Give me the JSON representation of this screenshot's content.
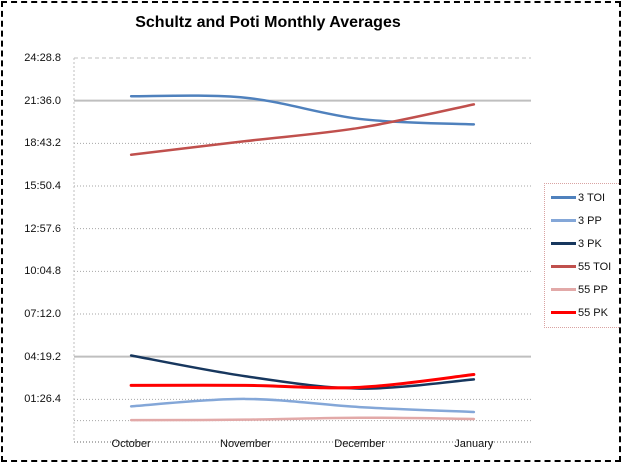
{
  "title": "Schultz and Poti Monthly Averages",
  "chart_data": {
    "type": "line",
    "title": "Schultz and Poti Monthly Averages",
    "categories": [
      "October",
      "November",
      "December",
      "January"
    ],
    "y_axis": {
      "tick_labels": [
        "24:28.8",
        "21:36.0",
        "18:43.2",
        "15:50.4",
        "12:57.6",
        "10:04.8",
        "07:12.0",
        "04:19.2",
        "01:26.4"
      ],
      "tick_seconds": [
        1468.8,
        1296.0,
        1123.2,
        950.4,
        777.6,
        604.8,
        432.0,
        259.2,
        86.4
      ],
      "min_seconds": -86.4,
      "max_seconds": 1468.8,
      "major_unit_seconds": 172.8,
      "extra_gridline_seconds": 0,
      "format": "mm:ss.t"
    },
    "series": [
      {
        "name": "3 TOI",
        "color": "#4F81BD",
        "stroke_width": 2.5,
        "values": [
          "21:54",
          "21:48",
          "20:22",
          "20:00"
        ],
        "values_seconds": [
          1314,
          1308,
          1222,
          1200
        ]
      },
      {
        "name": "3 PP",
        "color": "#84A7D8",
        "stroke_width": 2.5,
        "values": [
          "00:58",
          "01:28",
          "00:55",
          "00:35"
        ],
        "values_seconds": [
          58,
          88,
          55,
          35
        ]
      },
      {
        "name": "3 PK",
        "color": "#17375E",
        "stroke_width": 2.5,
        "values": [
          "04:24",
          "03:00",
          "02:10",
          "02:47"
        ],
        "values_seconds": [
          264,
          180,
          130,
          167
        ]
      },
      {
        "name": "55 TOI",
        "color": "#C0504D",
        "stroke_width": 2.5,
        "values": [
          "17:57",
          "18:52",
          "19:46",
          "21:21"
        ],
        "values_seconds": [
          1077,
          1132,
          1186,
          1281
        ]
      },
      {
        "name": "55 PP",
        "color": "#E2A9A8",
        "stroke_width": 2.5,
        "values": [
          "00:02",
          "00:04",
          "00:12",
          "00:07"
        ],
        "values_seconds": [
          2,
          4,
          12,
          7
        ]
      },
      {
        "name": "55 PK",
        "color": "#FF0000",
        "stroke_width": 3,
        "values": [
          "02:23",
          "02:23",
          "02:15",
          "03:07"
        ],
        "values_seconds": [
          143,
          143,
          135,
          187
        ]
      }
    ],
    "legend": {
      "position": "right",
      "labels": [
        "3 TOI",
        "3 PP",
        "3 PK",
        "55 TOI",
        "55 PP",
        "55 PK"
      ]
    },
    "smoothed_lines": true,
    "grid": true
  },
  "colors": {
    "gridline": "#A6A6A6",
    "emphasis_gridline": "#BFBFBF",
    "axis_text": "#111111",
    "outer_border": "#000000",
    "legend_border": "#D9A3A2",
    "background": "#FFFFFF"
  }
}
